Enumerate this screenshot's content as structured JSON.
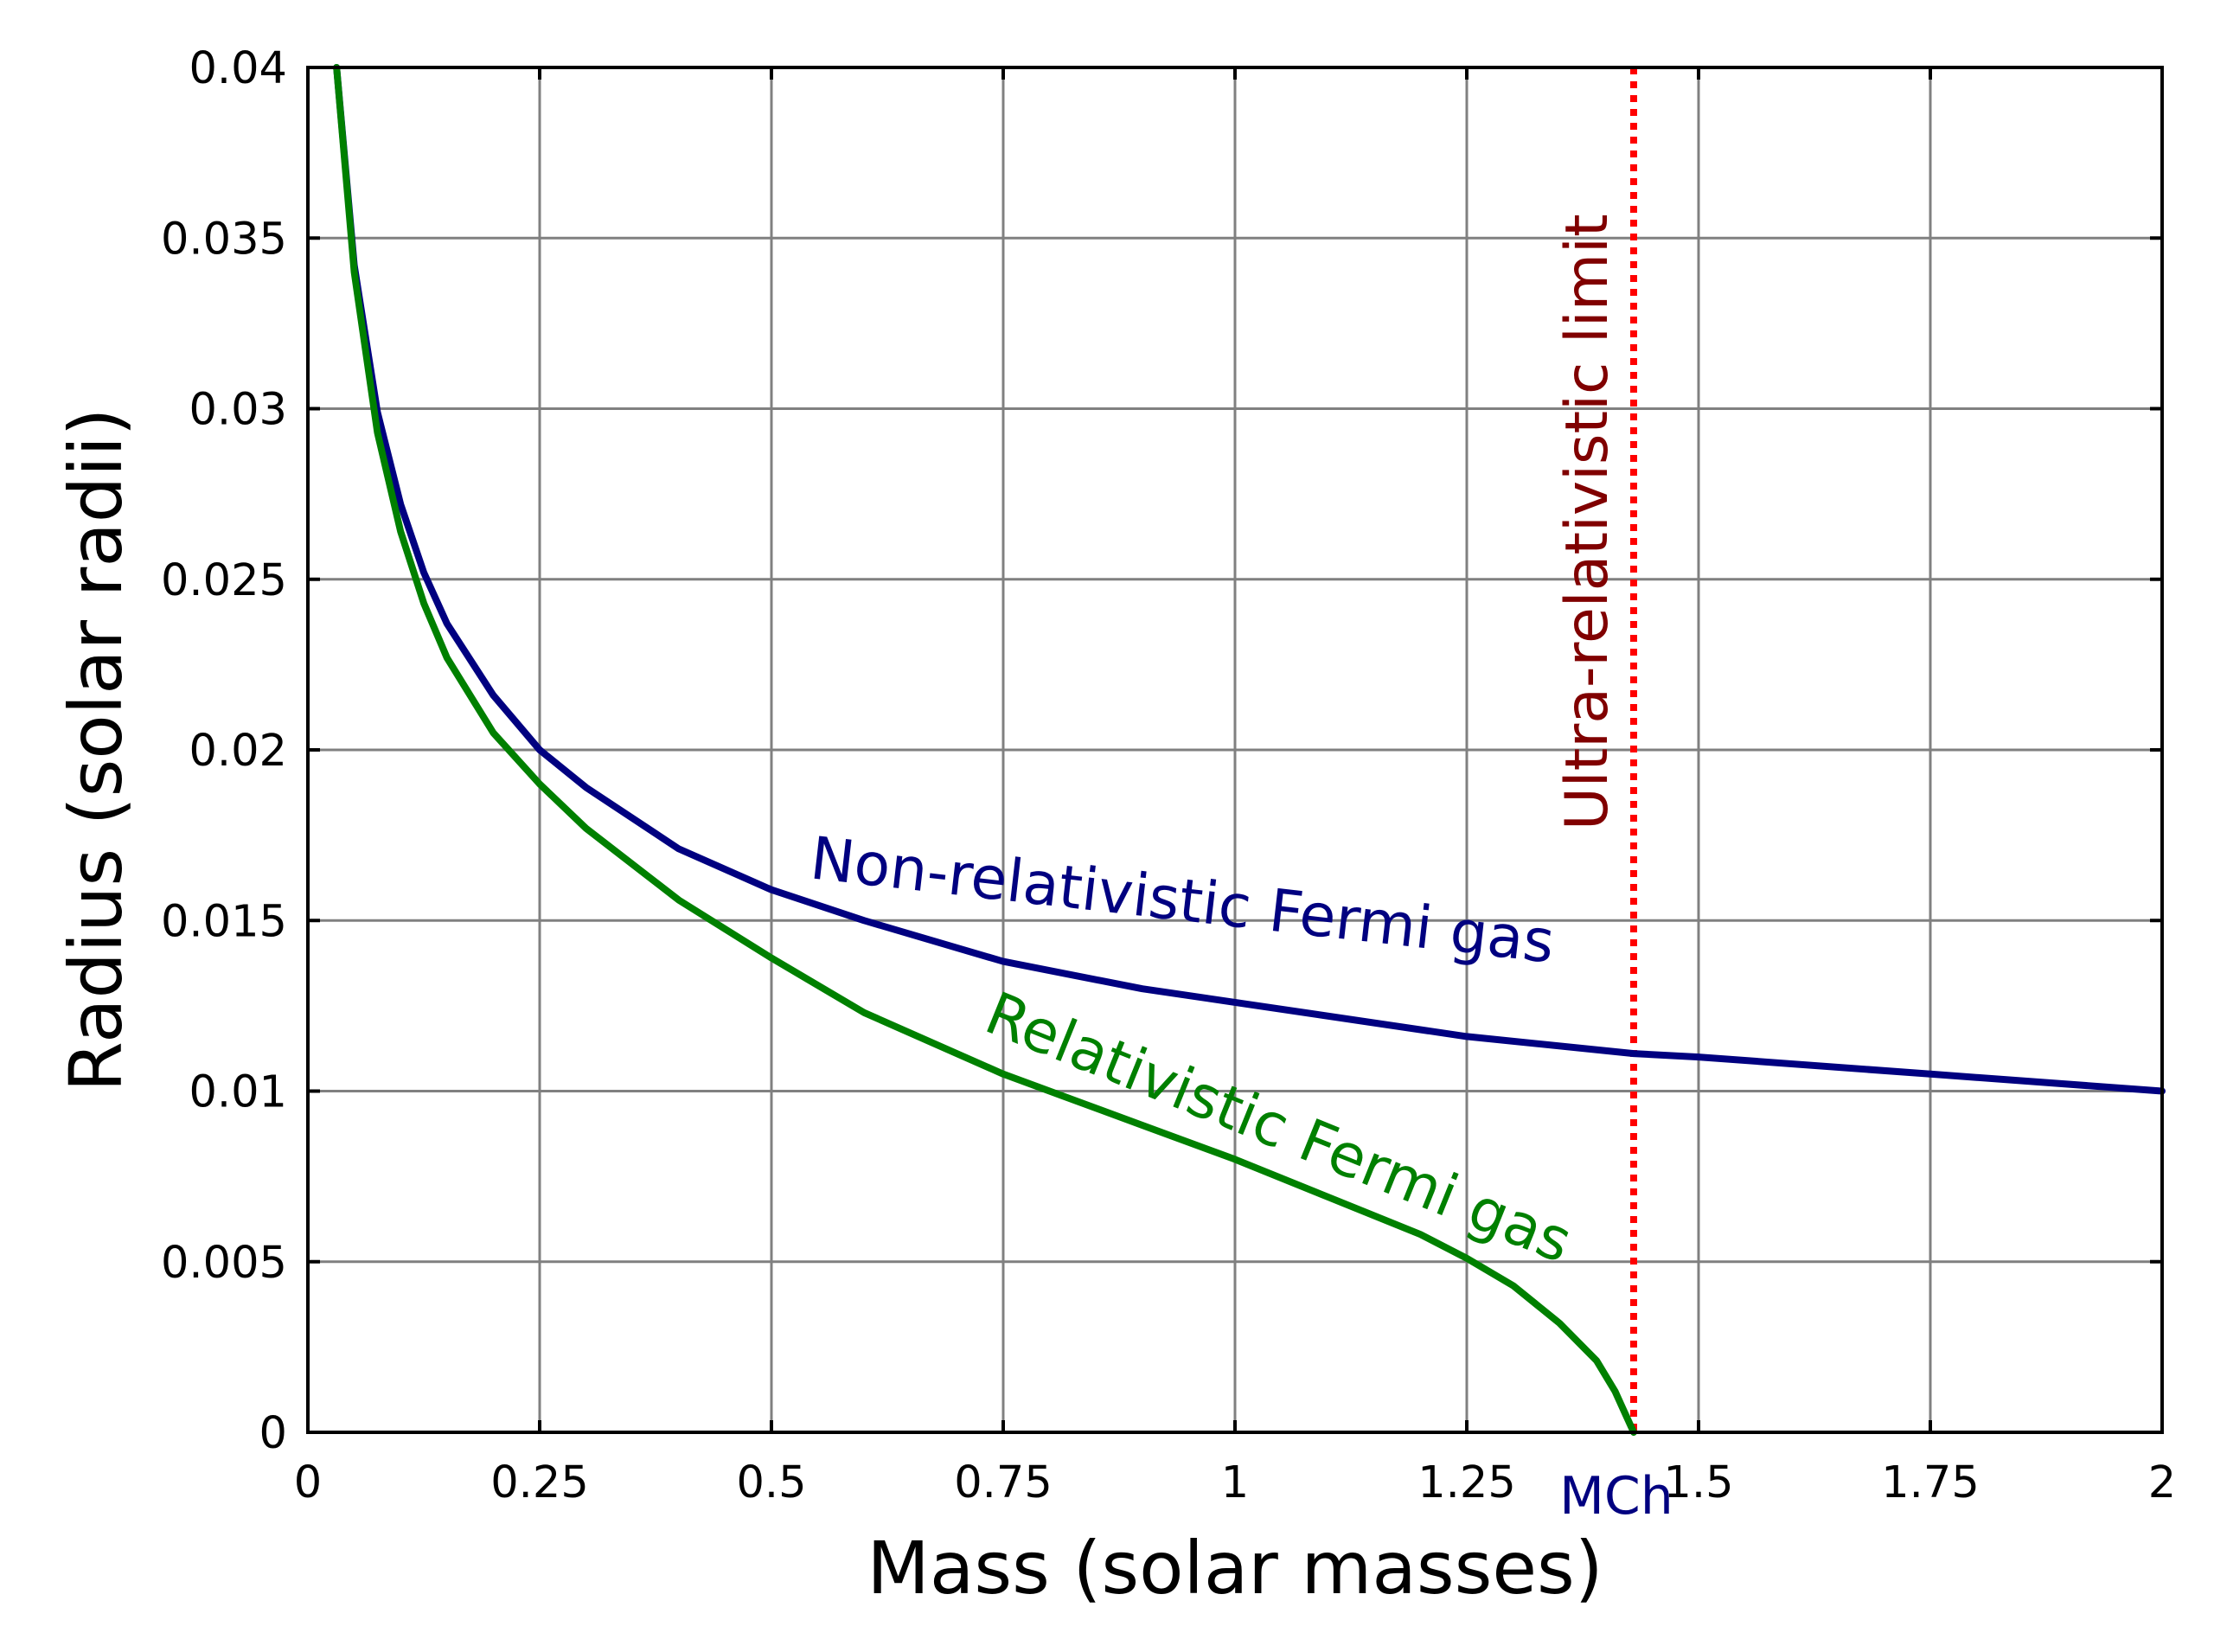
{
  "chart_data": {
    "type": "line",
    "title": "",
    "xlabel": "Mass (solar masses)",
    "ylabel": "Radius (solar radii)",
    "xlim": [
      0,
      2
    ],
    "ylim": [
      0,
      0.04
    ],
    "grid": true,
    "legend": "none",
    "x_ticks": [
      0,
      0.25,
      0.5,
      0.75,
      1,
      1.25,
      1.5,
      1.75,
      2
    ],
    "x_tick_labels": [
      "0",
      "0.25",
      "0.5",
      "0.75",
      "1",
      "1.25",
      "1.5",
      "1.75",
      "2"
    ],
    "y_ticks": [
      0,
      0.005,
      0.01,
      0.015,
      0.02,
      0.025,
      0.03,
      0.035,
      0.04
    ],
    "y_tick_labels": [
      "0",
      "0.005",
      "0.01",
      "0.015",
      "0.02",
      "0.025",
      "0.03",
      "0.035",
      "0.04"
    ],
    "series": [
      {
        "name": "Non-relativistic Fermi gas",
        "color": "#000080",
        "x": [
          0.031,
          0.05,
          0.075,
          0.1,
          0.125,
          0.15,
          0.2,
          0.25,
          0.3,
          0.4,
          0.5,
          0.6,
          0.75,
          0.9,
          1.0,
          1.25,
          1.43,
          1.5,
          1.75,
          2.0
        ],
        "y": [
          0.04,
          0.0342,
          0.0299,
          0.0272,
          0.0252,
          0.0237,
          0.0216,
          0.02,
          0.0189,
          0.0171,
          0.0159,
          0.015,
          0.0138,
          0.013,
          0.0126,
          0.0116,
          0.0111,
          0.011,
          0.0105,
          0.01
        ]
      },
      {
        "name": "Relativistic Fermi gas",
        "color": "#008000",
        "x": [
          0.031,
          0.05,
          0.075,
          0.1,
          0.125,
          0.15,
          0.2,
          0.25,
          0.3,
          0.4,
          0.5,
          0.6,
          0.75,
          0.9,
          1.0,
          1.1,
          1.2,
          1.25,
          1.3,
          1.35,
          1.39,
          1.41,
          1.42,
          1.43
        ],
        "y": [
          0.04,
          0.034,
          0.0293,
          0.0264,
          0.0243,
          0.0227,
          0.0205,
          0.019,
          0.0177,
          0.0156,
          0.0139,
          0.0123,
          0.0105,
          0.009,
          0.008,
          0.0069,
          0.0058,
          0.0051,
          0.0043,
          0.0032,
          0.0021,
          0.0012,
          0.0006,
          0
        ]
      }
    ],
    "vertical_line": {
      "name": "Ultra-relativistic limit",
      "x": 1.43,
      "color": "#ff0000",
      "style": "dotted",
      "label_color": "#800000"
    },
    "annotations": [
      {
        "text": "Non-relativistic Fermi gas",
        "color": "#000080"
      },
      {
        "text": "Relativistic Fermi gas",
        "color": "#008000"
      },
      {
        "text": "Ultra-relativistic limit",
        "color": "#800000"
      },
      {
        "text": "MCh",
        "color": "#000080"
      }
    ]
  },
  "colors": {
    "grid": "#808080",
    "axis": "#000000",
    "background": "#ffffff"
  }
}
